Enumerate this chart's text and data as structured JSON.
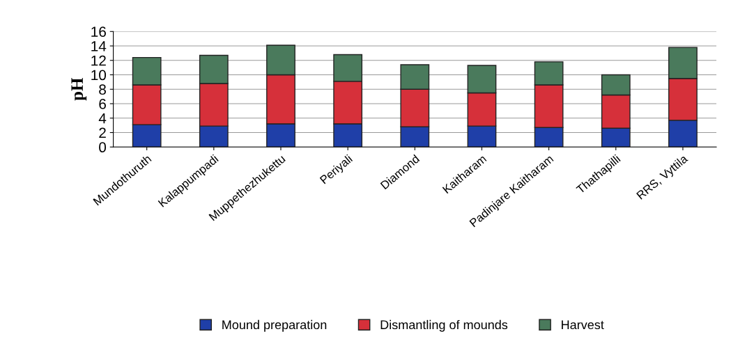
{
  "chart_data": {
    "type": "bar",
    "stacked": true,
    "ylabel": "pH",
    "categories": [
      "Mundothuruth",
      "Kalappumpadi",
      "Muppethezhukettu",
      "Periyali",
      "Diamond",
      "Kaitharam",
      "Padinjare Kaitharam",
      "Thathapilli",
      "RRS, Vyttila"
    ],
    "series": [
      {
        "name": "Mound preparation",
        "color": "#1f3fa8",
        "values": [
          3.1,
          2.9,
          3.2,
          3.2,
          2.8,
          2.9,
          2.7,
          2.6,
          3.7
        ]
      },
      {
        "name": "Dismantling of mounds",
        "color": "#d6303a",
        "values": [
          5.5,
          5.9,
          6.8,
          5.9,
          5.2,
          4.6,
          5.9,
          4.6,
          5.8
        ]
      },
      {
        "name": "Harvest",
        "color": "#4a7a5c",
        "values": [
          3.8,
          3.9,
          4.1,
          3.7,
          3.4,
          3.8,
          3.2,
          2.8,
          4.3
        ]
      }
    ],
    "ylim": [
      0,
      16
    ],
    "yticks": [
      0,
      2,
      4,
      6,
      8,
      10,
      12,
      14,
      16
    ],
    "grid": "y",
    "legend": "bottom"
  }
}
